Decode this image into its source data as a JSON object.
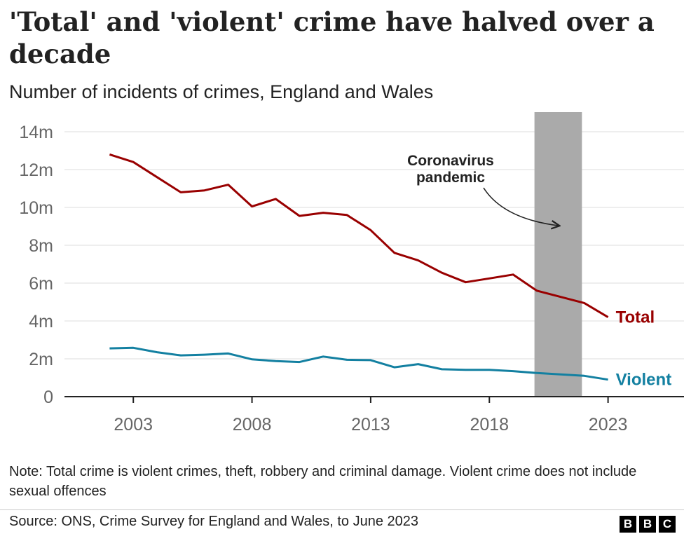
{
  "header": {
    "title": "'Total' and 'violent' crime have halved over a decade",
    "subtitle": "Number of incidents of crimes, England and Wales"
  },
  "chart_data": {
    "type": "line",
    "title": "'Total' and 'violent' crime have halved over a decade",
    "subtitle": "Number of incidents of crimes, England and Wales",
    "xlabel": "",
    "ylabel": "",
    "x": [
      2002,
      2003,
      2004,
      2005,
      2006,
      2007,
      2008,
      2009,
      2010,
      2011,
      2012,
      2013,
      2014,
      2015,
      2016,
      2017,
      2018,
      2019,
      2020,
      2022,
      2023
    ],
    "series": [
      {
        "name": "Total",
        "color": "#990000",
        "values": [
          12.8,
          12.4,
          11.6,
          10.8,
          10.9,
          11.2,
          10.05,
          10.45,
          9.55,
          9.72,
          9.6,
          8.8,
          7.6,
          7.2,
          6.55,
          6.05,
          6.25,
          6.45,
          5.6,
          4.95,
          4.2
        ]
      },
      {
        "name": "Violent",
        "color": "#1380A1",
        "values": [
          2.55,
          2.58,
          2.35,
          2.18,
          2.22,
          2.28,
          1.97,
          1.88,
          1.83,
          2.12,
          1.95,
          1.93,
          1.55,
          1.72,
          1.45,
          1.42,
          1.42,
          1.35,
          1.25,
          1.1,
          0.9
        ]
      }
    ],
    "x_ticks": [
      2003,
      2008,
      2013,
      2018,
      2023
    ],
    "x_tick_labels": [
      "2003",
      "2008",
      "2013",
      "2018",
      "2023"
    ],
    "xlim": [
      2000.1,
      2026.2
    ],
    "y_ticks": [
      0,
      2,
      4,
      6,
      8,
      10,
      12,
      14
    ],
    "y_tick_labels": [
      "0",
      "2m",
      "4m",
      "6m",
      "8m",
      "10m",
      "12m",
      "14m"
    ],
    "ylim": [
      0,
      14
    ],
    "grid": true,
    "legend": "direct labels at line ends",
    "gap_years": [
      2021
    ],
    "shaded_period": {
      "from": 2019.9,
      "to": 2021.9
    },
    "annotations": [
      {
        "text_lines": [
          "Coronavirus",
          "pandemic"
        ],
        "target": "shaded_period"
      }
    ]
  },
  "footer": {
    "note": "Note: Total crime is violent crimes, theft, robbery and criminal damage. Violent crime does not include sexual offences",
    "source": "Source: ONS, Crime Survey for England and Wales, to June 2023",
    "logo_letters": [
      "B",
      "B",
      "C"
    ]
  }
}
